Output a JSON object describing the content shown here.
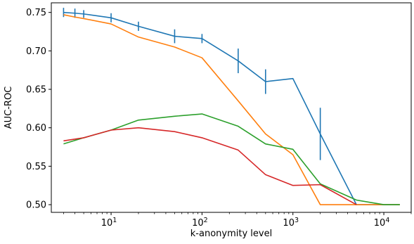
{
  "chart_data": {
    "type": "line",
    "title": "",
    "xlabel": "k-anonymity level",
    "ylabel": "AUC-ROC",
    "xscale": "log",
    "xlim": [
      2.2,
      20000
    ],
    "ylim": [
      0.49,
      0.7625
    ],
    "grid": false,
    "legend": "none",
    "x_ticks": [
      {
        "value": 10,
        "base": "10",
        "exp": "1"
      },
      {
        "value": 100,
        "base": "10",
        "exp": "2"
      },
      {
        "value": 1000,
        "base": "10",
        "exp": "3"
      },
      {
        "value": 10000,
        "base": "10",
        "exp": "4"
      }
    ],
    "y_ticks": [
      {
        "value": 0.5,
        "label": "0.50"
      },
      {
        "value": 0.55,
        "label": "0.55"
      },
      {
        "value": 0.6,
        "label": "0.60"
      },
      {
        "value": 0.65,
        "label": "0.65"
      },
      {
        "value": 0.7,
        "label": "0.70"
      },
      {
        "value": 0.75,
        "label": "0.75"
      }
    ],
    "series": [
      {
        "color": "#1f77b4",
        "x": [
          3,
          4,
          5,
          10,
          20,
          50,
          100,
          250,
          500,
          1000,
          2000,
          5000,
          10000,
          15000
        ],
        "y": [
          0.75,
          0.749,
          0.748,
          0.743,
          0.732,
          0.719,
          0.716,
          0.687,
          0.66,
          0.664,
          0.592,
          0.5,
          0.5,
          0.5
        ],
        "err": [
          0.006,
          0.006,
          0.005,
          0.006,
          0.006,
          0.009,
          0.006,
          0.016,
          0.016,
          0,
          0.034,
          0,
          0,
          0
        ]
      },
      {
        "color": "#ff7f0e",
        "x": [
          3,
          4,
          5,
          10,
          20,
          50,
          100,
          250,
          500,
          1000,
          2000,
          5000,
          10000,
          15000
        ],
        "y": [
          0.747,
          0.744,
          0.742,
          0.735,
          0.718,
          0.705,
          0.691,
          0.635,
          0.592,
          0.565,
          0.5,
          0.5,
          0.5,
          0.5
        ]
      },
      {
        "color": "#2ca02c",
        "x": [
          3,
          5,
          10,
          20,
          50,
          100,
          250,
          500,
          1000,
          2000,
          5000,
          10000,
          15000
        ],
        "y": [
          0.579,
          0.587,
          0.597,
          0.61,
          0.615,
          0.618,
          0.602,
          0.579,
          0.572,
          0.527,
          0.506,
          0.5,
          0.5
        ]
      },
      {
        "color": "#d62728",
        "x": [
          3,
          5,
          10,
          20,
          50,
          100,
          250,
          500,
          1000,
          2000,
          5000
        ],
        "y": [
          0.583,
          0.587,
          0.597,
          0.6,
          0.595,
          0.587,
          0.571,
          0.539,
          0.525,
          0.526,
          0.5
        ]
      }
    ]
  }
}
